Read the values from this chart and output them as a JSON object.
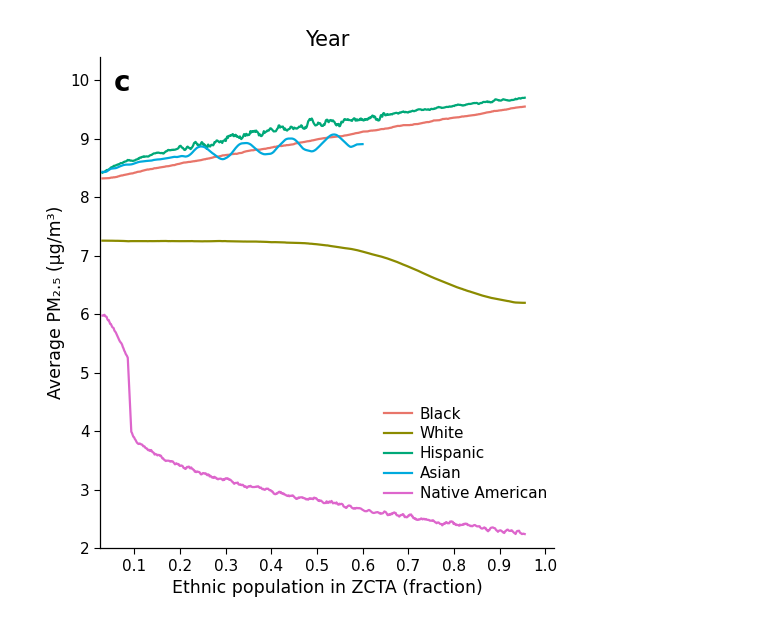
{
  "title": "Year",
  "panel_label": "c",
  "xlabel": "Ethnic population in ZCTA (fraction)",
  "ylabel": "Average PM₂.₅ (μg/m³)",
  "xlim": [
    0.025,
    1.02
  ],
  "ylim": [
    2.0,
    10.4
  ],
  "xticks": [
    0.1,
    0.2,
    0.3,
    0.4,
    0.5,
    0.6,
    0.7,
    0.8,
    0.9,
    1.0
  ],
  "yticks": [
    2,
    3,
    4,
    5,
    6,
    7,
    8,
    9,
    10
  ],
  "colors": {
    "Black": "#E8756A",
    "White": "#8B8B00",
    "Hispanic": "#00A878",
    "Asian": "#00AADD",
    "Native American": "#DD66CC"
  },
  "background_color": "#ffffff"
}
